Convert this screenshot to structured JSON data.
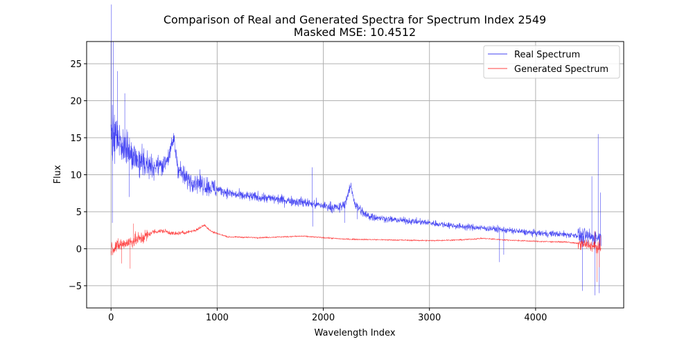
{
  "chart_data": {
    "type": "line",
    "title": "Comparison of Real and Generated Spectra for Spectrum Index 2549",
    "subtitle": "Masked MSE: 10.4512",
    "xlabel": "Wavelength Index",
    "ylabel": "Flux",
    "xlim": [
      -230,
      4830
    ],
    "ylim": [
      -8,
      28
    ],
    "x_ticks": [
      0,
      1000,
      2000,
      3000,
      4000
    ],
    "x_tick_labels": [
      "0",
      "1000",
      "2000",
      "3000",
      "4000"
    ],
    "y_ticks": [
      -5,
      0,
      5,
      10,
      15,
      20,
      25
    ],
    "y_tick_labels": [
      "−5",
      "0",
      "5",
      "10",
      "15",
      "20",
      "25"
    ],
    "grid": true,
    "legend_position": "top-right",
    "n_points": 4620,
    "series": [
      {
        "name": "Real Spectrum",
        "color": "#0000ee",
        "x": [
          0,
          50,
          100,
          200,
          300,
          400,
          500,
          560,
          590,
          630,
          700,
          800,
          1000,
          1200,
          1500,
          1800,
          2000,
          2150,
          2200,
          2260,
          2300,
          2400,
          2600,
          3000,
          3300,
          3600,
          3800,
          4000,
          4200,
          4400,
          4500,
          4600
        ],
        "values": [
          16,
          15,
          14,
          12.5,
          11.5,
          11,
          11.5,
          13,
          15,
          11,
          9.5,
          9,
          8,
          7.2,
          6.8,
          6.3,
          5.8,
          5.5,
          6,
          8.5,
          6,
          4.5,
          4,
          3.5,
          3,
          2.7,
          2.4,
          2.1,
          2,
          1.8,
          1.6,
          1.5
        ]
      },
      {
        "name": "Generated Spectrum",
        "color": "#ff0000",
        "x": [
          0,
          100,
          200,
          300,
          400,
          500,
          600,
          700,
          800,
          880,
          950,
          1100,
          1400,
          1800,
          2000,
          2200,
          2600,
          3000,
          3300,
          3500,
          3700,
          4000,
          4300,
          4500,
          4620
        ],
        "values": [
          0,
          0.6,
          1,
          1.5,
          2.3,
          2.4,
          2,
          2.2,
          2.5,
          3.2,
          2.3,
          1.6,
          1.5,
          1.7,
          1.5,
          1.3,
          1.2,
          1.1,
          1.2,
          1.4,
          1.2,
          1,
          0.9,
          0.5,
          0
        ]
      }
    ]
  }
}
